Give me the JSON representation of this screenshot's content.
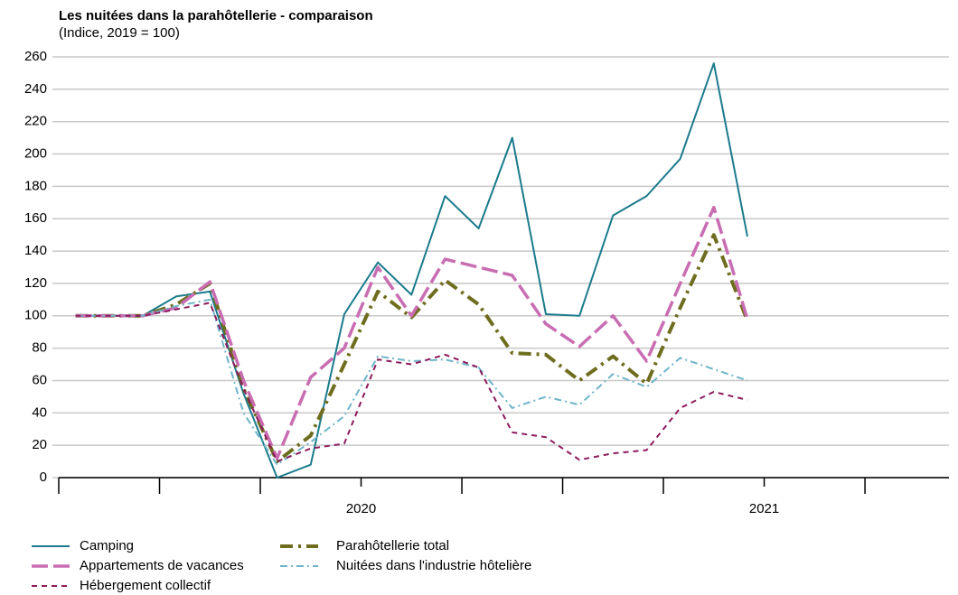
{
  "chart_data": {
    "type": "line",
    "title": "Les nuitées dans la parahôtellerie - comparaison",
    "subtitle": "(Indice, 2019 = 100)",
    "categories": [
      null,
      null,
      null,
      null,
      null,
      null,
      null,
      null,
      null,
      null,
      null,
      null,
      null,
      null,
      null,
      null,
      null,
      null,
      null,
      null,
      null
    ],
    "xticks": [
      {
        "value": 8.5,
        "label": "2020"
      },
      {
        "value": 20.5,
        "label": "2021"
      }
    ],
    "xminor_ticks": [
      -0.5,
      2.5,
      5.5,
      11.5,
      14.5,
      17.5,
      23.5
    ],
    "xlim": [
      -0.5,
      26
    ],
    "ylim": [
      0,
      260
    ],
    "yticks": [
      0,
      20,
      40,
      60,
      80,
      100,
      120,
      140,
      160,
      180,
      200,
      220,
      240,
      260
    ],
    "grid": true,
    "series": [
      {
        "name": "Camping",
        "color": "#1b7b8c",
        "style": "solid",
        "values": [
          100,
          100,
          100,
          112,
          115,
          52,
          0,
          8,
          101,
          133,
          113,
          174,
          154,
          210,
          101,
          100,
          162,
          174,
          197,
          256,
          149
        ]
      },
      {
        "name": "Parahôtellerie total",
        "color": "#6e6d1e",
        "style": "dashdot-thick",
        "values": [
          100,
          100,
          100,
          107,
          120,
          55,
          10,
          26,
          70,
          115,
          99,
          122,
          107,
          77,
          76,
          60,
          75,
          58,
          105,
          150,
          97
        ]
      },
      {
        "name": "Appartements de vacances",
        "color": "#c96db2",
        "style": "dash-thick",
        "values": [
          100,
          100,
          100,
          105,
          121,
          60,
          12,
          62,
          80,
          130,
          100,
          135,
          130,
          125,
          95,
          81,
          100,
          72,
          120,
          167,
          98
        ]
      },
      {
        "name": "Nuitées dans l'industrie hôtelière",
        "color": "#6fb5c9",
        "style": "dashdot-thin",
        "values": [
          100,
          100,
          100,
          106,
          110,
          40,
          8,
          22,
          38,
          75,
          72,
          73,
          68,
          43,
          50,
          45,
          64,
          56,
          74,
          67,
          60
        ]
      },
      {
        "name": "Hébergement collectif",
        "color": "#8c1b5c",
        "style": "dash-short",
        "values": [
          100,
          100,
          100,
          104,
          108,
          55,
          10,
          18,
          21,
          73,
          70,
          76,
          68,
          28,
          25,
          11,
          15,
          17,
          43,
          53,
          48
        ]
      }
    ]
  }
}
